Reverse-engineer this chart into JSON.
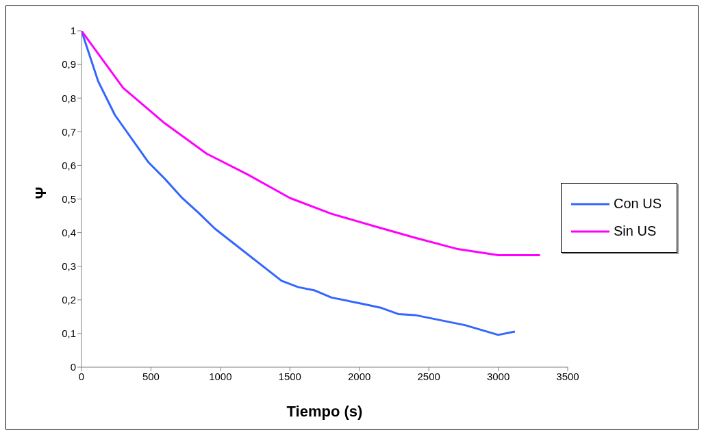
{
  "chart_data": {
    "type": "line",
    "xlabel": "Tiempo (s)",
    "ylabel": "Ψ",
    "xlim": [
      0,
      3500
    ],
    "xticks": [
      0,
      500,
      1000,
      1500,
      2000,
      2500,
      3000,
      3500
    ],
    "ylim": [
      0,
      1
    ],
    "yticks": [
      0,
      {
        "value": 0.1,
        "label": "0,1"
      },
      {
        "value": 0.2,
        "label": "0,2"
      },
      {
        "value": 0.3,
        "label": "0,3"
      },
      {
        "value": 0.4,
        "label": "0,4"
      },
      {
        "value": 0.5,
        "label": "0,5"
      },
      {
        "value": 0.6,
        "label": "0,6"
      },
      {
        "value": 0.7,
        "label": "0,7"
      },
      {
        "value": 0.8,
        "label": "0,8"
      },
      {
        "value": 0.9,
        "label": "0,9"
      },
      1
    ],
    "grid": false,
    "legend": "right",
    "marker": "none",
    "line_style": "solid",
    "series": [
      {
        "name": "Con US",
        "color": "#3366ff",
        "x": [
          0,
          120,
          240,
          480,
          600,
          720,
          840,
          960,
          1440,
          1560,
          1680,
          1800,
          2040,
          2160,
          2280,
          2400,
          2760,
          3000,
          3120
        ],
        "values": [
          1,
          0.85,
          0.75,
          0.61,
          0.56,
          0.505,
          0.46,
          0.412,
          0.257,
          0.238,
          0.228,
          0.207,
          0.187,
          0.176,
          0.158,
          0.155,
          0.125,
          0.096,
          0.106
        ]
      },
      {
        "name": "Sin US",
        "color": "#ff00ff",
        "x": [
          0,
          300,
          600,
          900,
          1200,
          1500,
          1800,
          2100,
          2400,
          2700,
          3000,
          3300
        ],
        "values": [
          1,
          0.83,
          0.725,
          0.635,
          0.572,
          0.503,
          0.456,
          0.42,
          0.385,
          0.352,
          0.333,
          0.333
        ]
      }
    ]
  }
}
